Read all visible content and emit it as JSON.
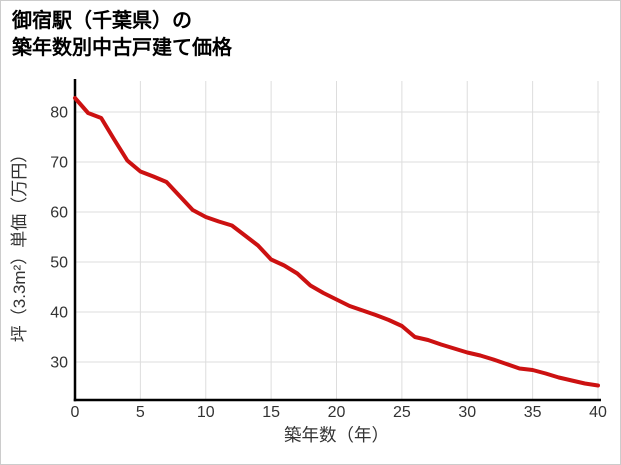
{
  "page": {
    "background": "#ffffff",
    "border_color": "#cccccc"
  },
  "title": {
    "line1": "御宿駅（千葉県）の",
    "line2": "築年数別中古戸建て価格"
  },
  "chart_data": {
    "type": "line",
    "title": "御宿駅（千葉県）の築年数別中古戸建て価格",
    "xlabel": "築年数（年）",
    "ylabel": "坪（3.3m²）単価（万円）",
    "x": [
      0,
      1,
      2,
      3,
      4,
      5,
      6,
      7,
      8,
      9,
      10,
      11,
      12,
      13,
      14,
      15,
      16,
      17,
      18,
      19,
      20,
      21,
      22,
      23,
      24,
      25,
      26,
      27,
      28,
      29,
      30,
      31,
      32,
      33,
      34,
      35,
      36,
      37,
      38,
      39,
      40
    ],
    "values": [
      82.8,
      79.8,
      78.8,
      74.5,
      70.3,
      68.1,
      67.1,
      66.0,
      63.2,
      60.4,
      59.0,
      58.1,
      57.3,
      55.3,
      53.3,
      50.5,
      49.3,
      47.7,
      45.3,
      43.8,
      42.5,
      41.2,
      40.3,
      39.4,
      38.4,
      37.2,
      35.0,
      34.4,
      33.5,
      32.7,
      31.9,
      31.3,
      30.5,
      29.6,
      28.7,
      28.4,
      27.7,
      26.9,
      26.3,
      25.7,
      25.3
    ],
    "xlim": [
      0,
      40
    ],
    "ylim": [
      22.4,
      86.6
    ],
    "x_ticks": [
      0,
      5,
      10,
      15,
      20,
      25,
      30,
      35,
      40
    ],
    "y_ticks": [
      30,
      40,
      50,
      60,
      70,
      80
    ],
    "grid": true,
    "legend": "none",
    "line_color": "#cc1111",
    "line_width": 4,
    "axis_color": "#000000",
    "grid_color": "#dddddd",
    "tick_label_color": "#333333",
    "axis_title_color": "#333333"
  }
}
